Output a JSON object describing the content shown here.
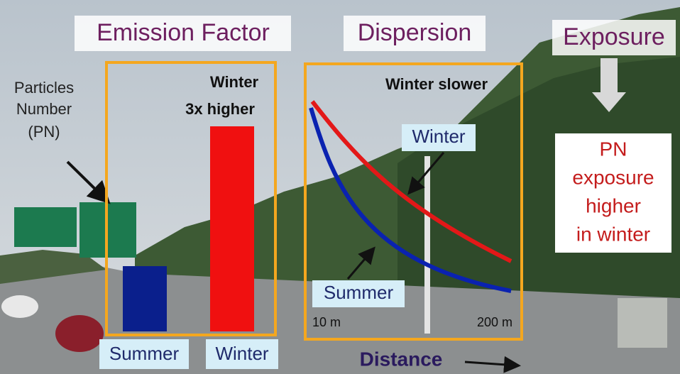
{
  "headers": {
    "emission_factor": "Emission Factor",
    "dispersion": "Dispersion",
    "exposure": "Exposure"
  },
  "particles_label": [
    "Particles",
    "Number",
    "(PN)"
  ],
  "emission": {
    "note": [
      "Winter",
      "3x higher"
    ],
    "bar_labels": [
      "Summer",
      "Winter"
    ]
  },
  "dispersion": {
    "note": "Winter slower",
    "curve_labels": [
      "Winter",
      "Summer"
    ],
    "distance_ticks": [
      "10 m",
      "200 m"
    ],
    "axis_label": "Distance"
  },
  "exposure": {
    "note": [
      "PN",
      "exposure",
      "higher",
      "in winter"
    ]
  }
}
